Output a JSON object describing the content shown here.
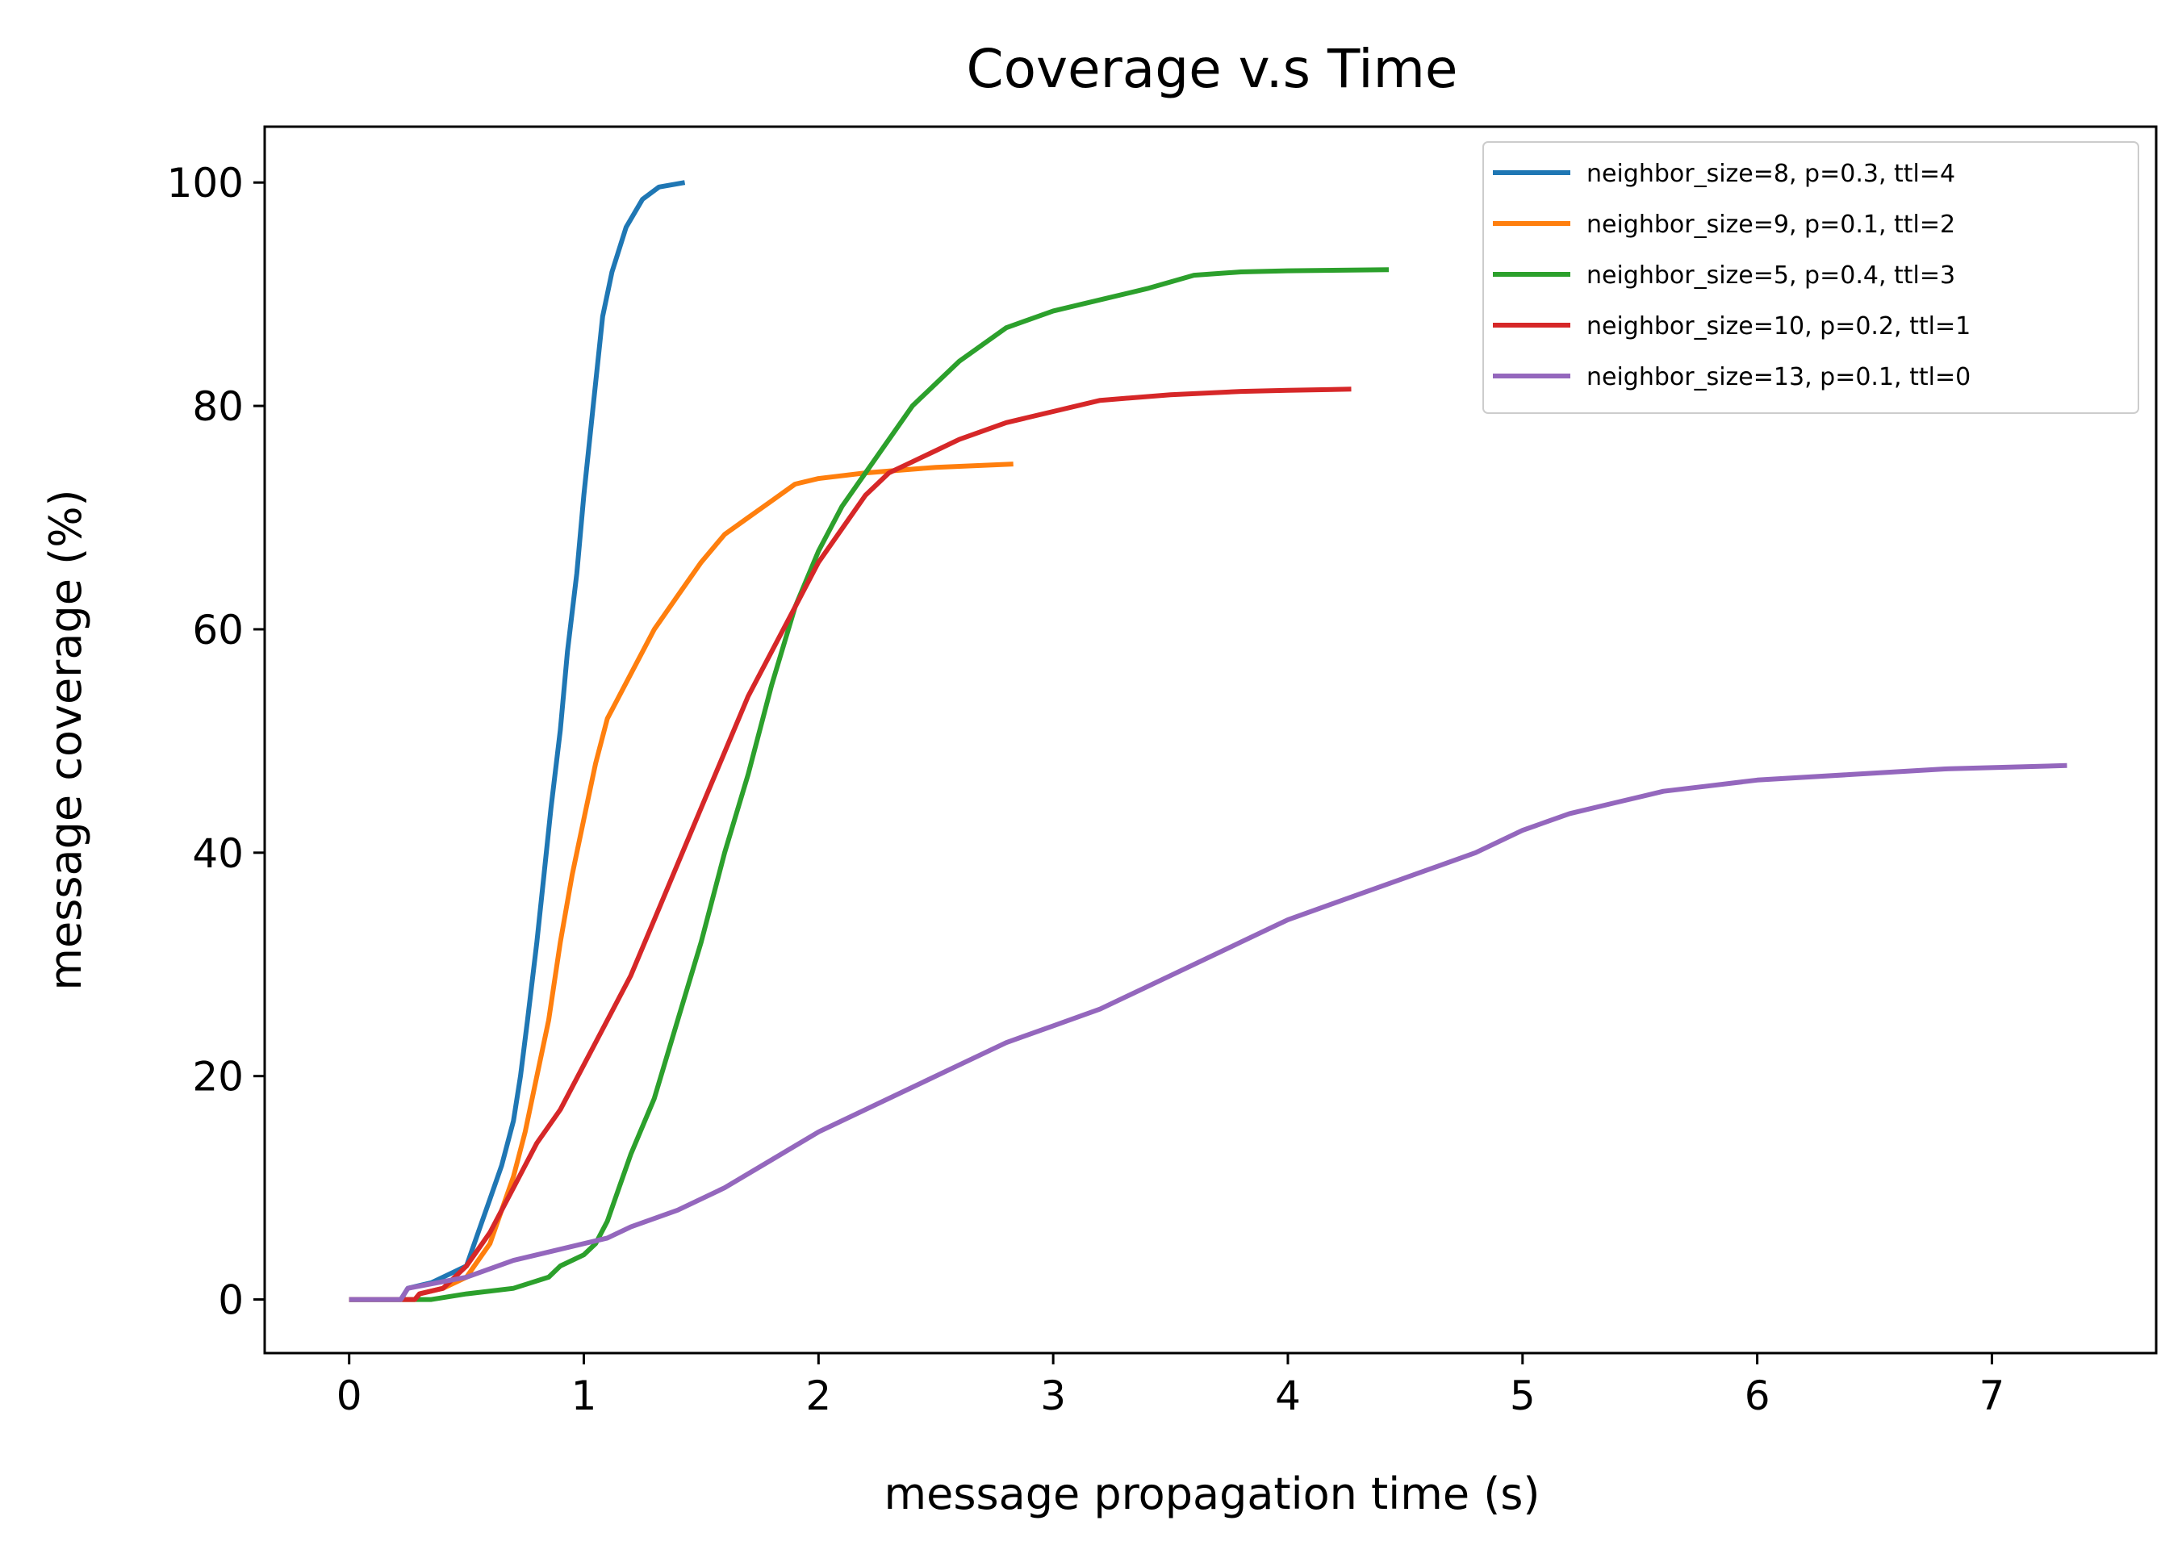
{
  "chart_data": {
    "type": "line",
    "title": "Coverage v.s Time",
    "xlabel": "message propagation time (s)",
    "ylabel": "message coverage (%)",
    "xlim": [
      -0.36,
      7.7
    ],
    "ylim": [
      -4.8,
      105
    ],
    "xticks": [
      0,
      1,
      2,
      3,
      4,
      5,
      6,
      7
    ],
    "yticks": [
      0,
      20,
      40,
      60,
      80,
      100
    ],
    "grid": false,
    "legend_position": "top-right",
    "series": [
      {
        "name": "neighbor_size=8, p=0.3, ttl=4",
        "color": "#1f77b4",
        "points": [
          [
            0,
            0
          ],
          [
            0.22,
            0
          ],
          [
            0.25,
            1
          ],
          [
            0.35,
            1.5
          ],
          [
            0.45,
            2.5
          ],
          [
            0.5,
            3
          ],
          [
            0.55,
            6
          ],
          [
            0.6,
            9
          ],
          [
            0.65,
            12
          ],
          [
            0.7,
            16
          ],
          [
            0.73,
            20
          ],
          [
            0.76,
            25
          ],
          [
            0.8,
            32
          ],
          [
            0.83,
            38
          ],
          [
            0.86,
            44
          ],
          [
            0.9,
            51
          ],
          [
            0.93,
            58
          ],
          [
            0.97,
            65
          ],
          [
            1.0,
            72
          ],
          [
            1.04,
            80
          ],
          [
            1.08,
            88
          ],
          [
            1.12,
            92
          ],
          [
            1.18,
            96
          ],
          [
            1.25,
            98.5
          ],
          [
            1.32,
            99.6
          ],
          [
            1.43,
            100
          ]
        ]
      },
      {
        "name": "neighbor_size=9, p=0.1, ttl=2",
        "color": "#ff7f0e",
        "points": [
          [
            0,
            0
          ],
          [
            0.28,
            0
          ],
          [
            0.3,
            0.5
          ],
          [
            0.4,
            1
          ],
          [
            0.5,
            2
          ],
          [
            0.55,
            3.5
          ],
          [
            0.6,
            5
          ],
          [
            0.65,
            8
          ],
          [
            0.7,
            11
          ],
          [
            0.75,
            15
          ],
          [
            0.8,
            20
          ],
          [
            0.85,
            25
          ],
          [
            0.9,
            32
          ],
          [
            0.95,
            38
          ],
          [
            1.0,
            43
          ],
          [
            1.05,
            48
          ],
          [
            1.1,
            52
          ],
          [
            1.2,
            56
          ],
          [
            1.3,
            60
          ],
          [
            1.4,
            63
          ],
          [
            1.5,
            66
          ],
          [
            1.6,
            68.5
          ],
          [
            1.7,
            70
          ],
          [
            1.8,
            71.5
          ],
          [
            1.9,
            73
          ],
          [
            2.0,
            73.5
          ],
          [
            2.2,
            74
          ],
          [
            2.5,
            74.5
          ],
          [
            2.83,
            74.8
          ]
        ]
      },
      {
        "name": "neighbor_size=5, p=0.4, ttl=3",
        "color": "#2ca02c",
        "points": [
          [
            0,
            0
          ],
          [
            0.35,
            0
          ],
          [
            0.5,
            0.5
          ],
          [
            0.7,
            1
          ],
          [
            0.85,
            2
          ],
          [
            0.9,
            3
          ],
          [
            1.0,
            4
          ],
          [
            1.05,
            5
          ],
          [
            1.1,
            7
          ],
          [
            1.15,
            10
          ],
          [
            1.2,
            13
          ],
          [
            1.3,
            18
          ],
          [
            1.4,
            25
          ],
          [
            1.5,
            32
          ],
          [
            1.6,
            40
          ],
          [
            1.7,
            47
          ],
          [
            1.8,
            55
          ],
          [
            1.9,
            62
          ],
          [
            2.0,
            67
          ],
          [
            2.1,
            71
          ],
          [
            2.2,
            74
          ],
          [
            2.3,
            77
          ],
          [
            2.4,
            80
          ],
          [
            2.5,
            82
          ],
          [
            2.6,
            84
          ],
          [
            2.7,
            85.5
          ],
          [
            2.8,
            87
          ],
          [
            3.0,
            88.5
          ],
          [
            3.2,
            89.5
          ],
          [
            3.4,
            90.5
          ],
          [
            3.6,
            91.7
          ],
          [
            3.8,
            92
          ],
          [
            4.0,
            92.1
          ],
          [
            4.43,
            92.2
          ]
        ]
      },
      {
        "name": "neighbor_size=10, p=0.2, ttl=1",
        "color": "#d62728",
        "points": [
          [
            0,
            0
          ],
          [
            0.28,
            0
          ],
          [
            0.3,
            0.5
          ],
          [
            0.4,
            1
          ],
          [
            0.5,
            3
          ],
          [
            0.6,
            6
          ],
          [
            0.7,
            10
          ],
          [
            0.8,
            14
          ],
          [
            0.9,
            17
          ],
          [
            1.0,
            21
          ],
          [
            1.1,
            25
          ],
          [
            1.2,
            29
          ],
          [
            1.3,
            34
          ],
          [
            1.4,
            39
          ],
          [
            1.5,
            44
          ],
          [
            1.6,
            49
          ],
          [
            1.7,
            54
          ],
          [
            1.8,
            58
          ],
          [
            1.9,
            62
          ],
          [
            2.0,
            66
          ],
          [
            2.1,
            69
          ],
          [
            2.2,
            72
          ],
          [
            2.3,
            74
          ],
          [
            2.4,
            75
          ],
          [
            2.5,
            76
          ],
          [
            2.6,
            77
          ],
          [
            2.8,
            78.5
          ],
          [
            3.0,
            79.5
          ],
          [
            3.2,
            80.5
          ],
          [
            3.5,
            81
          ],
          [
            3.8,
            81.3
          ],
          [
            4.0,
            81.4
          ],
          [
            4.27,
            81.5
          ]
        ]
      },
      {
        "name": "neighbor_size=13, p=0.1, ttl=0",
        "color": "#9467bd",
        "points": [
          [
            0,
            0
          ],
          [
            0.22,
            0
          ],
          [
            0.25,
            1
          ],
          [
            0.5,
            2
          ],
          [
            0.7,
            3.5
          ],
          [
            0.8,
            4
          ],
          [
            1.0,
            5
          ],
          [
            1.1,
            5.5
          ],
          [
            1.2,
            6.5
          ],
          [
            1.4,
            8
          ],
          [
            1.6,
            10
          ],
          [
            1.8,
            12.5
          ],
          [
            2.0,
            15
          ],
          [
            2.2,
            17
          ],
          [
            2.4,
            19
          ],
          [
            2.6,
            21
          ],
          [
            2.8,
            23
          ],
          [
            3.0,
            24.5
          ],
          [
            3.2,
            26
          ],
          [
            3.4,
            28
          ],
          [
            3.6,
            30
          ],
          [
            3.8,
            32
          ],
          [
            4.0,
            34
          ],
          [
            4.2,
            35.5
          ],
          [
            4.4,
            37
          ],
          [
            4.6,
            38.5
          ],
          [
            4.8,
            40
          ],
          [
            5.0,
            42
          ],
          [
            5.2,
            43.5
          ],
          [
            5.4,
            44.5
          ],
          [
            5.6,
            45.5
          ],
          [
            5.8,
            46
          ],
          [
            6.0,
            46.5
          ],
          [
            6.4,
            47
          ],
          [
            6.8,
            47.5
          ],
          [
            7.32,
            47.8
          ]
        ]
      }
    ]
  }
}
